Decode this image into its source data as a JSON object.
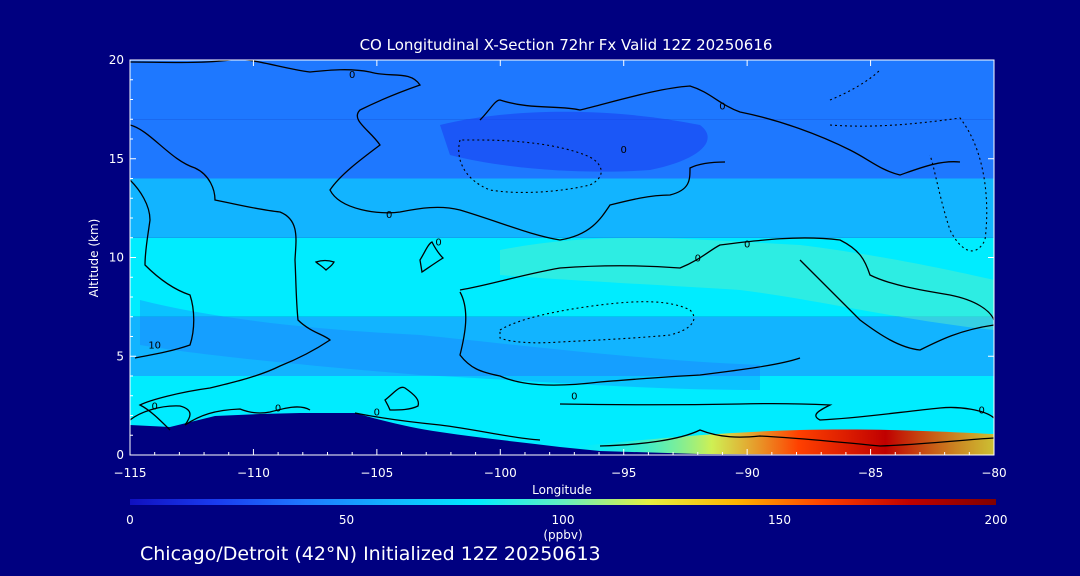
{
  "chart_data": {
    "type": "heatmap",
    "title": "CO Longitudinal X-Section 72hr  Fx Valid 12Z 20250616",
    "xlabel": "Longitude",
    "ylabel": "Altitude (km)",
    "xlim": [
      -115,
      -80
    ],
    "ylim": [
      0,
      20
    ],
    "x_ticks": [
      -115,
      -110,
      -105,
      -100,
      -95,
      -90,
      -85,
      -80
    ],
    "x_tick_labels": [
      "−115",
      "−110",
      "−105",
      "−100",
      "−95",
      "−90",
      "−85",
      "−80"
    ],
    "y_ticks": [
      0,
      5,
      10,
      15,
      20
    ],
    "y_tick_labels": [
      "0",
      "5",
      "10",
      "15",
      "20"
    ],
    "colorbar": {
      "min": 0,
      "max": 200,
      "ticks": [
        0,
        50,
        100,
        150,
        200
      ],
      "tick_labels": [
        "0",
        "50",
        "100",
        "150",
        "200"
      ],
      "unit_label": "(ppbv)",
      "colors": [
        "#1010c0",
        "#1a3cf0",
        "#1e78ff",
        "#12b4ff",
        "#00ecff",
        "#64f0c0",
        "#e6f040",
        "#ffb400",
        "#ff4000",
        "#c00000",
        "#800000"
      ]
    },
    "field_bands": [
      {
        "alt_min": 0.0,
        "alt_max": 2.0,
        "co_ppbv": 80
      },
      {
        "alt_min": 2.0,
        "alt_max": 4.0,
        "co_ppbv": 70
      },
      {
        "alt_min": 4.0,
        "alt_max": 7.0,
        "co_ppbv": 65
      },
      {
        "alt_min": 7.0,
        "alt_max": 11.0,
        "co_ppbv": 75
      },
      {
        "alt_min": 11.0,
        "alt_max": 14.0,
        "co_ppbv": 60
      },
      {
        "alt_min": 14.0,
        "alt_max": 17.0,
        "co_ppbv": 45
      },
      {
        "alt_min": 17.0,
        "alt_max": 20.0,
        "co_ppbv": 30
      }
    ],
    "surface_max_ppbv": 190,
    "contour_labels": [
      {
        "text": "0",
        "lon": -106.0,
        "alt": 19.1
      },
      {
        "text": "0",
        "lon": -91.0,
        "alt": 17.5
      },
      {
        "text": "0",
        "lon": -95.0,
        "alt": 15.3
      },
      {
        "text": "0",
        "lon": -104.5,
        "alt": 12.0
      },
      {
        "text": "0",
        "lon": -102.5,
        "alt": 10.6
      },
      {
        "text": "0",
        "lon": -90.0,
        "alt": 10.5
      },
      {
        "text": "0",
        "lon": -92.0,
        "alt": 9.8
      },
      {
        "text": "10",
        "lon": -114.0,
        "alt": 5.4
      },
      {
        "text": "0",
        "lon": -114.0,
        "alt": 2.3
      },
      {
        "text": "0",
        "lon": -109.0,
        "alt": 2.2
      },
      {
        "text": "0",
        "lon": -105.0,
        "alt": 2.0
      },
      {
        "text": "0",
        "lon": -97.0,
        "alt": 2.8
      },
      {
        "text": "0",
        "lon": -80.5,
        "alt": 2.1
      }
    ]
  },
  "footer": "Chicago/Detroit (42°N) Initialized 12Z 20250613"
}
